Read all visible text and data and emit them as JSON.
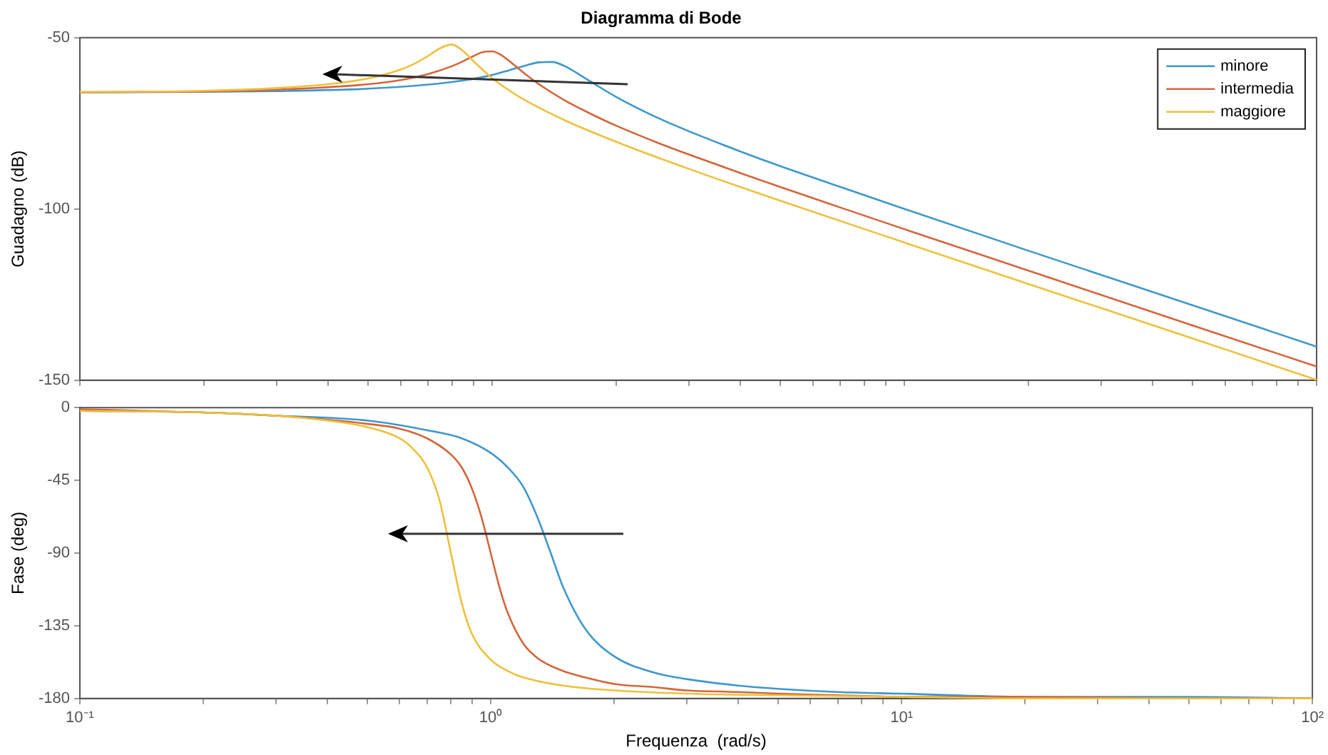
{
  "chart_data": [
    {
      "type": "line",
      "title": "Diagramma di Bode",
      "ylabel": "Guadagno (dB)",
      "log": "x",
      "xlim": [
        0.1,
        100
      ],
      "ylim": [
        -150,
        -50
      ],
      "xticks": [
        0.1,
        {
          "value": 0.2,
          "label": null
        },
        {
          "value": 0.3,
          "label": null
        },
        {
          "value": 0.4,
          "label": null
        },
        {
          "value": 0.5,
          "label": null
        },
        {
          "value": 0.6,
          "label": null
        },
        {
          "value": 0.7,
          "label": null
        },
        {
          "value": 0.8,
          "label": null
        },
        {
          "value": 0.9,
          "label": null
        },
        1,
        {
          "value": 2,
          "label": null
        },
        {
          "value": 3,
          "label": null
        },
        {
          "value": 4,
          "label": null
        },
        {
          "value": 5,
          "label": null
        },
        {
          "value": 6,
          "label": null
        },
        {
          "value": 7,
          "label": null
        },
        {
          "value": 8,
          "label": null
        },
        {
          "value": 9,
          "label": null
        },
        10,
        {
          "value": 20,
          "label": null
        },
        {
          "value": 30,
          "label": null
        },
        {
          "value": 40,
          "label": null
        },
        {
          "value": 50,
          "label": null
        },
        {
          "value": 60,
          "label": null
        },
        {
          "value": 70,
          "label": null
        },
        {
          "value": 80,
          "label": null
        },
        {
          "value": 90,
          "label": null
        },
        100
      ],
      "yticks": [
        -150,
        -100,
        -50
      ],
      "tick_labels": "y",
      "legend": "top right",
      "marker": "none",
      "line_style": "solid",
      "series": [
        {
          "name": "minore",
          "color": "#3d98cb",
          "x": [
            0.1,
            0.2,
            0.3,
            0.5,
            0.7,
            0.85,
            1,
            1.1,
            1.2,
            1.3,
            1.4,
            1.5,
            1.7,
            2,
            2.5,
            3,
            4,
            5,
            7,
            10,
            20,
            50,
            100
          ],
          "values": [
            -66,
            -65.8,
            -65.6,
            -64.9,
            -63.7,
            -62.5,
            -60.9,
            -59.5,
            -58.2,
            -57.2,
            -57.1,
            -58.3,
            -62.2,
            -67.3,
            -73.2,
            -77.3,
            -83.2,
            -87.5,
            -93.6,
            -100,
            -112.2,
            -128.1,
            -140.2
          ]
        },
        {
          "name": "intermedia",
          "color": "#d4663a",
          "x": [
            0.1,
            0.2,
            0.3,
            0.5,
            0.6,
            0.7,
            0.8,
            0.85,
            0.9,
            0.95,
            1,
            1.05,
            1.1,
            1.2,
            1.3,
            1.5,
            1.7,
            2,
            2.5,
            3,
            4,
            5,
            7,
            10,
            20,
            50,
            100
          ],
          "values": [
            -65.9,
            -65.7,
            -65.2,
            -63.6,
            -62.4,
            -60.6,
            -58.3,
            -56.9,
            -55.4,
            -54.2,
            -54,
            -55,
            -56.8,
            -60.5,
            -63.6,
            -68.3,
            -71.7,
            -75.7,
            -80.5,
            -84.1,
            -89.5,
            -93.6,
            -99.6,
            -105.9,
            -118,
            -134,
            -146
          ]
        },
        {
          "name": "maggiore",
          "color": "#efc03c",
          "x": [
            0.1,
            0.2,
            0.3,
            0.4,
            0.5,
            0.6,
            0.65,
            0.7,
            0.75,
            0.8,
            0.85,
            0.9,
            1,
            1.1,
            1.2,
            1.5,
            2,
            3,
            5,
            10,
            20,
            50,
            100
          ],
          "values": [
            -65.9,
            -65.5,
            -64.7,
            -63.6,
            -61.9,
            -59.3,
            -57.5,
            -55.3,
            -53,
            -52,
            -53.9,
            -56.8,
            -61.8,
            -65.4,
            -68.2,
            -74.1,
            -80.4,
            -88.3,
            -97.6,
            -109.8,
            -121.9,
            -137.8,
            -149.9
          ]
        }
      ]
    },
    {
      "type": "line",
      "xlabel": "Frequenza  (rad/s)",
      "ylabel": "Fase (deg)",
      "log": "x",
      "xlim": [
        0.1,
        100
      ],
      "ylim": [
        -180,
        0
      ],
      "xticks": [
        {
          "value": 0.1,
          "label": "10⁻¹"
        },
        {
          "value": 0.2,
          "label": null
        },
        {
          "value": 0.3,
          "label": null
        },
        {
          "value": 0.4,
          "label": null
        },
        {
          "value": 0.5,
          "label": null
        },
        {
          "value": 0.6,
          "label": null
        },
        {
          "value": 0.7,
          "label": null
        },
        {
          "value": 0.8,
          "label": null
        },
        {
          "value": 0.9,
          "label": null
        },
        {
          "value": 1,
          "label": "10⁰"
        },
        {
          "value": 2,
          "label": null
        },
        {
          "value": 3,
          "label": null
        },
        {
          "value": 4,
          "label": null
        },
        {
          "value": 5,
          "label": null
        },
        {
          "value": 6,
          "label": null
        },
        {
          "value": 7,
          "label": null
        },
        {
          "value": 8,
          "label": null
        },
        {
          "value": 9,
          "label": null
        },
        {
          "value": 10,
          "label": "10¹"
        },
        {
          "value": 20,
          "label": null
        },
        {
          "value": 30,
          "label": null
        },
        {
          "value": 40,
          "label": null
        },
        {
          "value": 50,
          "label": null
        },
        {
          "value": 60,
          "label": null
        },
        {
          "value": 70,
          "label": null
        },
        {
          "value": 80,
          "label": null
        },
        {
          "value": 90,
          "label": null
        },
        {
          "value": 100,
          "label": "10²"
        }
      ],
      "yticks": [
        -180,
        -135,
        -90,
        -45,
        0
      ],
      "marker": "none",
      "line_style": "solid",
      "series": [
        {
          "color": "#3d98cb",
          "x": [
            0.1,
            0.2,
            0.3,
            0.5,
            0.7,
            0.85,
            1,
            1.1,
            1.2,
            1.3,
            1.4,
            1.5,
            1.7,
            2,
            2.5,
            3,
            4,
            5,
            7,
            10,
            20,
            50,
            100
          ],
          "values": [
            -2,
            -3,
            -5,
            -8,
            -14,
            -19,
            -28,
            -37,
            -49,
            -68,
            -90,
            -111,
            -137,
            -154,
            -164,
            -168,
            -172,
            -174,
            -176,
            -177,
            -179,
            -179,
            -180
          ]
        },
        {
          "color": "#d4663a",
          "x": [
            0.1,
            0.2,
            0.3,
            0.5,
            0.6,
            0.7,
            0.8,
            0.85,
            0.9,
            0.95,
            1,
            1.05,
            1.1,
            1.2,
            1.3,
            1.5,
            1.7,
            2,
            2.5,
            3,
            4,
            5,
            7,
            10,
            20,
            50,
            100
          ],
          "values": [
            -1,
            -3,
            -5,
            -10,
            -13,
            -19,
            -29,
            -37,
            -50,
            -68,
            -90,
            -111,
            -127,
            -146,
            -155,
            -163,
            -167,
            -171,
            -173,
            -175,
            -176,
            -177,
            -178,
            -179,
            -179,
            -180,
            -180
          ]
        },
        {
          "color": "#efc03c",
          "x": [
            0.1,
            0.2,
            0.3,
            0.4,
            0.5,
            0.6,
            0.65,
            0.7,
            0.75,
            0.8,
            0.85,
            0.9,
            1,
            1.1,
            1.2,
            1.5,
            2,
            3,
            5,
            10,
            20,
            50,
            100
          ],
          "values": [
            -2,
            -3,
            -5,
            -8,
            -12,
            -19,
            -26,
            -37,
            -57,
            -90,
            -121,
            -140,
            -156,
            -163,
            -167,
            -172,
            -175,
            -177,
            -178,
            -179,
            -180,
            -180,
            -180
          ]
        }
      ]
    }
  ]
}
